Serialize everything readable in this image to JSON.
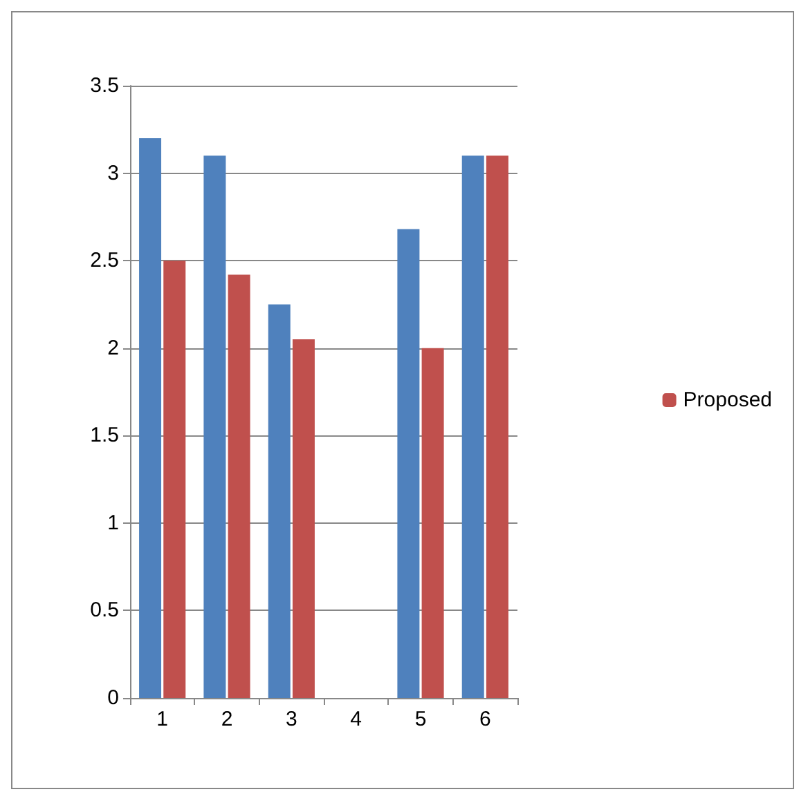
{
  "chart_data": {
    "type": "bar",
    "categories": [
      "1",
      "2",
      "3",
      "4",
      "5",
      "6"
    ],
    "series": [
      {
        "color": "#4f81bd",
        "values": [
          3.2,
          3.1,
          2.25,
          null,
          2.68,
          3.1
        ]
      },
      {
        "name": "Proposed",
        "color": "#c0504d",
        "values": [
          2.5,
          2.42,
          2.05,
          null,
          2.0,
          3.1
        ]
      }
    ],
    "ylim": [
      0,
      3.5
    ],
    "yticks": [
      0,
      0.5,
      1,
      1.5,
      2,
      2.5,
      3,
      3.5
    ],
    "grid": "y",
    "legend": "right"
  }
}
